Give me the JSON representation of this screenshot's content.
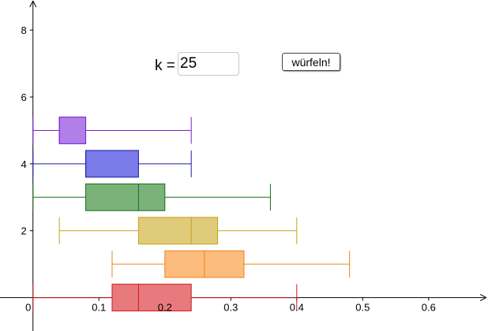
{
  "controls": {
    "k_label": "k =",
    "k_value": "25",
    "roll_label": "würfeln!"
  },
  "chart_data": {
    "type": "boxplot",
    "xlim": [
      -0.05,
      0.69
    ],
    "ylim": [
      -1.0,
      8.9
    ],
    "x_ticks": [
      0,
      0.1,
      0.2,
      0.3,
      0.4,
      0.5,
      0.6
    ],
    "x_tick_labels": [
      "0",
      "0.1",
      "0.2",
      "0.3",
      "0.4",
      "0.5",
      "0.6"
    ],
    "y_ticks": [
      2,
      4,
      6,
      8
    ],
    "y_tick_labels": [
      "2",
      "4",
      "6",
      "8"
    ],
    "grid": false,
    "boxes": [
      {
        "y": 5,
        "min": 0,
        "q1": 0.04,
        "median": 0.04,
        "q3": 0.08,
        "max": 0.24,
        "half_height": 0.4,
        "color": "#7a1fcf",
        "fill": "#b07fe8"
      },
      {
        "y": 4,
        "min": 0,
        "q1": 0.08,
        "median": 0.08,
        "q3": 0.16,
        "max": 0.24,
        "half_height": 0.4,
        "color": "#1a1aa8",
        "fill": "#7a7ae8"
      },
      {
        "y": 3,
        "min": 0,
        "q1": 0.08,
        "median": 0.16,
        "q3": 0.2,
        "max": 0.36,
        "half_height": 0.4,
        "color": "#1a6e1a",
        "fill": "#7ab27a"
      },
      {
        "y": 2,
        "min": 0.04,
        "q1": 0.16,
        "median": 0.24,
        "q3": 0.28,
        "max": 0.4,
        "half_height": 0.4,
        "color": "#c8a21a",
        "fill": "#e0cb7a"
      },
      {
        "y": 1,
        "min": 0.12,
        "q1": 0.2,
        "median": 0.26,
        "q3": 0.32,
        "max": 0.48,
        "half_height": 0.4,
        "color": "#e8861a",
        "fill": "#fdbb7e"
      },
      {
        "y": 0,
        "min": 0,
        "q1": 0.12,
        "median": 0.16,
        "q3": 0.24,
        "max": 0.4,
        "half_height": 0.4,
        "color": "#cc1a1a",
        "fill": "#e87a7e"
      }
    ]
  }
}
